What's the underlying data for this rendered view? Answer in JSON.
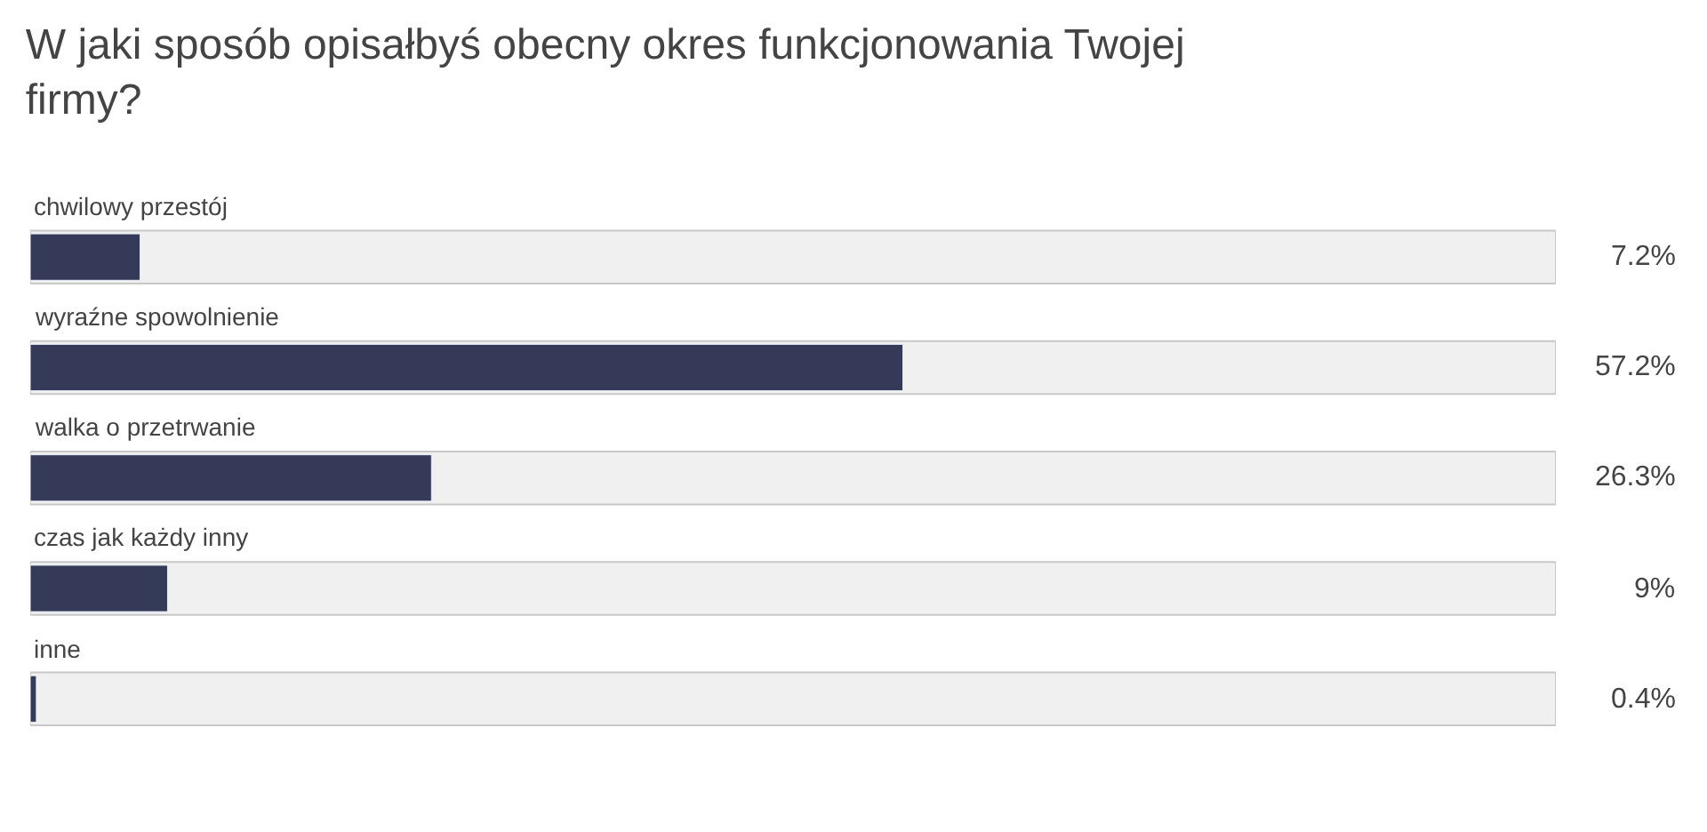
{
  "chart_data": {
    "type": "bar",
    "orientation": "horizontal",
    "title": "W jaki sposób opisałbyś obecny okres funkcjonowania Twojej firmy?",
    "categories": [
      "chwilowy przestój",
      "wyraźne spowolnienie",
      "walka o przetrwanie",
      "czas jak każdy inny",
      "inne"
    ],
    "values": [
      7.2,
      57.2,
      26.3,
      9,
      0.4
    ],
    "value_labels": [
      "7.2%",
      "57.2%",
      "26.3%",
      "9%",
      "0.4%"
    ],
    "color": "#343a57",
    "xlim": [
      0,
      100
    ],
    "grid": false,
    "legend": false
  }
}
